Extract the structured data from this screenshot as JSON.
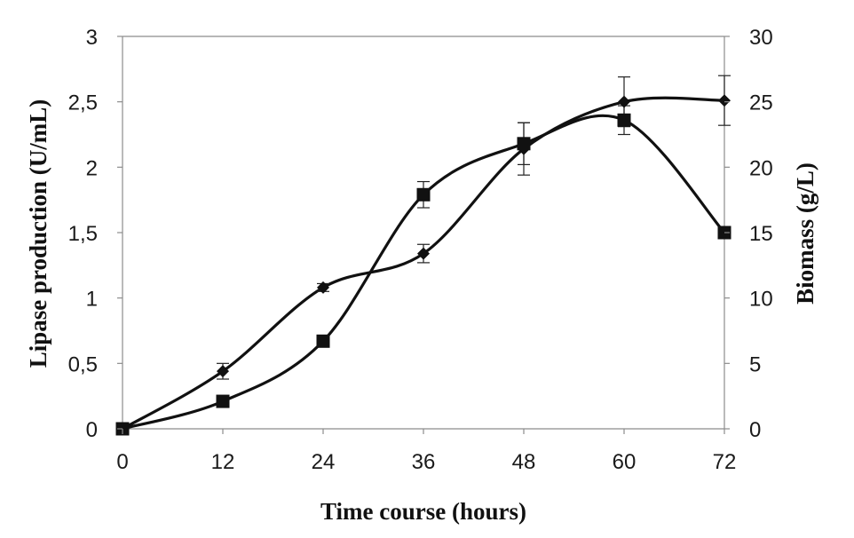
{
  "chart_data": {
    "type": "line",
    "xlabel": "Time course (hours)",
    "ylabel": "Lipase production (U/mL)",
    "y2label": "Biomass (g/L)",
    "x": [
      0,
      12,
      24,
      36,
      48,
      60,
      72
    ],
    "x_tick_labels": [
      "0",
      "12",
      "24",
      "36",
      "48",
      "60",
      "72"
    ],
    "xlim": [
      0,
      72
    ],
    "ylim": [
      0,
      3
    ],
    "y_tick_labels": [
      "0",
      "0,5",
      "1",
      "1,5",
      "2",
      "2,5",
      "3"
    ],
    "y2lim": [
      0,
      30
    ],
    "y2_tick_labels": [
      "0",
      "5",
      "10",
      "15",
      "20",
      "25",
      "30"
    ],
    "grid": false,
    "smooth_lines": true,
    "series": [
      {
        "marker": "diamond",
        "axis": "left",
        "color": "#111111",
        "values": [
          0.0,
          0.44,
          1.08,
          1.34,
          2.14,
          2.5,
          2.51
        ],
        "errors": [
          0.0,
          0.06,
          0.03,
          0.07,
          0.2,
          0.19,
          0.19
        ]
      },
      {
        "marker": "square",
        "axis": "left",
        "color": "#111111",
        "values": [
          0.0,
          0.21,
          0.67,
          1.79,
          2.18,
          2.36,
          1.5
        ],
        "errors": [
          0.0,
          0.0,
          0.0,
          0.1,
          0.16,
          0.11,
          0.0
        ]
      }
    ]
  }
}
